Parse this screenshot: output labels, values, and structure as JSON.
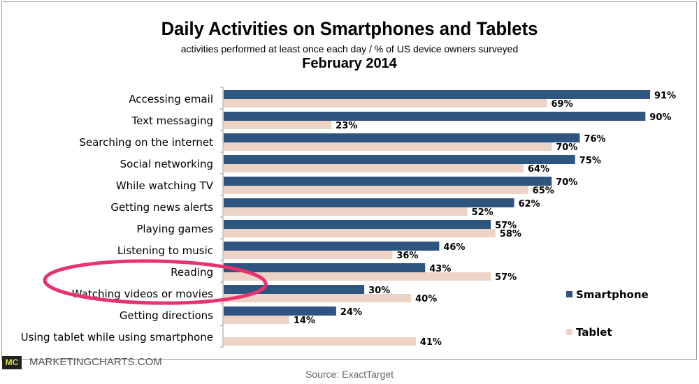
{
  "chart_data": {
    "type": "bar",
    "orientation": "horizontal",
    "title": "Daily Activities on Smartphones and Tablets",
    "subtitle": "activities performed at least once each day / % of US device owners surveyed",
    "date_label": "February 2014",
    "categories": [
      "Accessing email",
      "Text messaging",
      "Searching on the internet",
      "Social networking",
      "While watching TV",
      "Getting news alerts",
      "Playing games",
      "Listening to music",
      "Reading",
      "Watching videos or movies",
      "Getting directions",
      "Using tablet while using smartphone"
    ],
    "series": [
      {
        "name": "Smartphone",
        "color": "#2e5480",
        "values": [
          91,
          90,
          76,
          75,
          70,
          62,
          57,
          46,
          43,
          30,
          24,
          null
        ],
        "labels": [
          "91%",
          "90%",
          "76%",
          "75%",
          "70%",
          "62%",
          "57%",
          "46%",
          "43%",
          "30%",
          "24%",
          ""
        ]
      },
      {
        "name": "Tablet",
        "color": "#ecd3c6",
        "values": [
          69,
          23,
          70,
          64,
          65,
          52,
          58,
          36,
          57,
          40,
          14,
          41
        ],
        "labels": [
          "69%",
          "23%",
          "70%",
          "64%",
          "65%",
          "52%",
          "58%",
          "36%",
          "57%",
          "40%",
          "14%",
          "41%"
        ]
      }
    ],
    "xlim": [
      0,
      100
    ],
    "grid": false,
    "legend_position": "right",
    "highlight": {
      "categories": [
        "Reading",
        "Watching videos or movies"
      ],
      "color": "#e8336f",
      "shape": "ellipse"
    }
  },
  "source": "Source: ExactTarget",
  "brand": "MARKETINGCHARTS.COM",
  "logo": "MC"
}
